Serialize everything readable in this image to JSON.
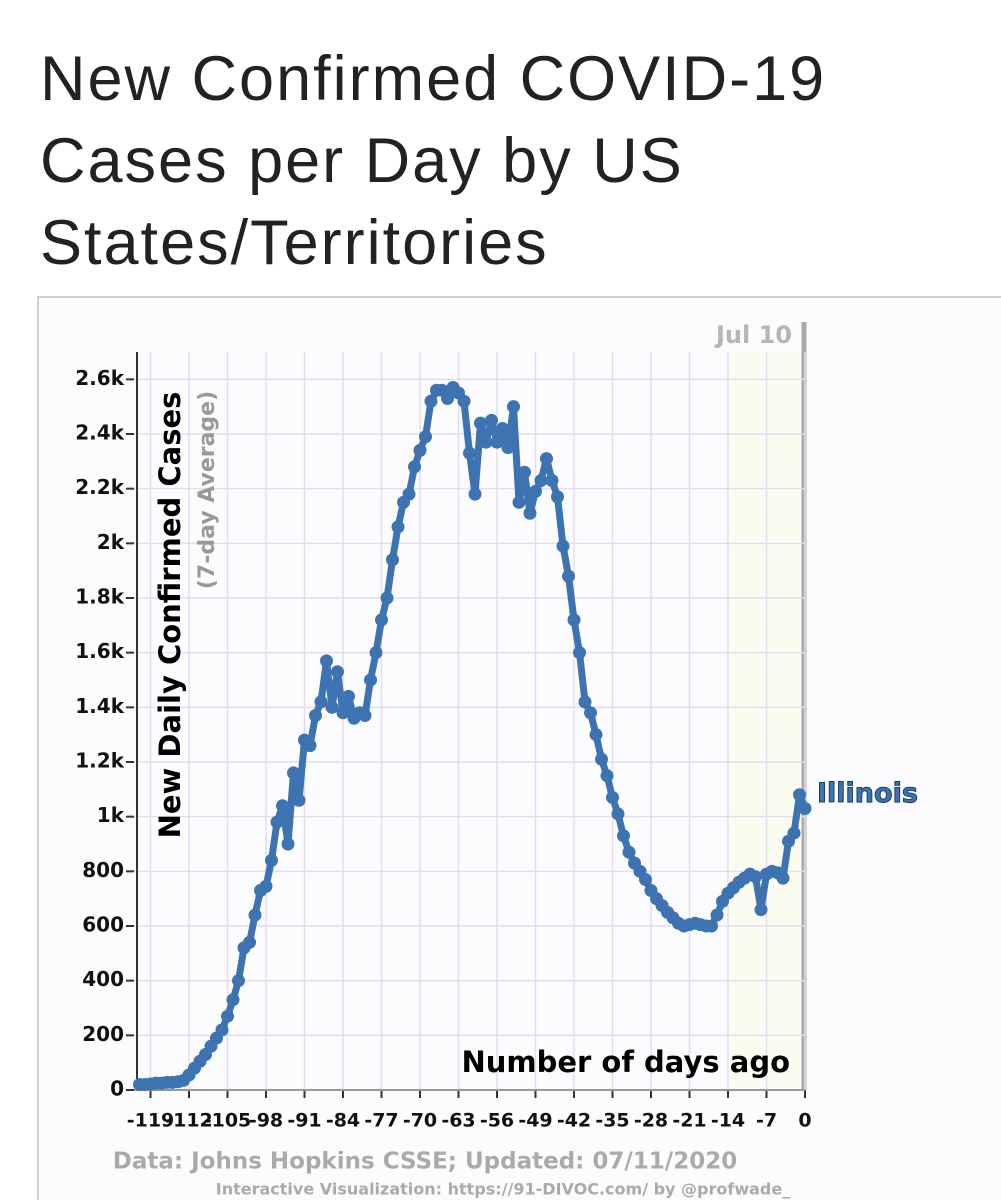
{
  "chart_data": {
    "type": "line",
    "title": "New Confirmed COVID-19 Cases per Day by US States/Territories",
    "ylabel": "New Daily Confirmed Cases",
    "ylabel_sub": "(7-day Average)",
    "xlabel": "Number of days ago",
    "date_label": "Jul 10",
    "source": "Data: Johns Hopkins CSSE; Updated: 07/11/2020",
    "credit": "Interactive Visualization: https://91-DIVOC.com/ by @profwade_",
    "xlim": [
      -122,
      0
    ],
    "ylim": [
      0,
      2700
    ],
    "xticks": [
      -119,
      -112,
      -105,
      -98,
      -91,
      -84,
      -77,
      -70,
      -63,
      -56,
      -49,
      -42,
      -35,
      -28,
      -21,
      -14,
      -7,
      0
    ],
    "yticks": [
      0,
      200,
      400,
      600,
      800,
      {
        "value": 1000,
        "label": "1k"
      },
      {
        "value": 1200,
        "label": "1.2k"
      },
      {
        "value": 1400,
        "label": "1.4k"
      },
      {
        "value": 1600,
        "label": "1.6k"
      },
      {
        "value": 1800,
        "label": "1.8k"
      },
      {
        "value": 2000,
        "label": "2k"
      },
      {
        "value": 2200,
        "label": "2.2k"
      },
      {
        "value": 2400,
        "label": "2.4k"
      },
      {
        "value": 2600,
        "label": "2.6k"
      }
    ],
    "grid": true,
    "x": [
      -121,
      -120,
      -119,
      -118,
      -117,
      -116,
      -115,
      -114,
      -113,
      -112,
      -111,
      -110,
      -109,
      -108,
      -107,
      -106,
      -105,
      -104,
      -103,
      -102,
      -101,
      -100,
      -99,
      -98,
      -97,
      -96,
      -95,
      -94,
      -93,
      -92,
      -91,
      -90,
      -89,
      -88,
      -87,
      -86,
      -85,
      -84,
      -83,
      -82,
      -81,
      -80,
      -79,
      -78,
      -77,
      -76,
      -75,
      -74,
      -73,
      -72,
      -71,
      -70,
      -69,
      -68,
      -67,
      -66,
      -65,
      -64,
      -63,
      -62,
      -61,
      -60,
      -59,
      -58,
      -57,
      -56,
      -55,
      -54,
      -53,
      -52,
      -51,
      -50,
      -49,
      -48,
      -47,
      -46,
      -45,
      -44,
      -43,
      -42,
      -41,
      -40,
      -39,
      -38,
      -37,
      -36,
      -35,
      -34,
      -33,
      -32,
      -31,
      -30,
      -29,
      -28,
      -27,
      -26,
      -25,
      -24,
      -23,
      -22,
      -21,
      -20,
      -19,
      -18,
      -17,
      -16,
      -15,
      -14,
      -13,
      -12,
      -11,
      -10,
      -9,
      -8,
      -7,
      -6,
      -5,
      -4,
      -3,
      -2,
      -1,
      0
    ],
    "series": [
      {
        "name": "Illinois",
        "color": "#3d73b0",
        "values": [
          20,
          20,
          22,
          25,
          25,
          28,
          28,
          30,
          35,
          55,
          80,
          105,
          130,
          160,
          190,
          220,
          270,
          330,
          400,
          520,
          540,
          640,
          730,
          745,
          840,
          980,
          1040,
          900,
          1160,
          1060,
          1280,
          1260,
          1370,
          1420,
          1570,
          1400,
          1530,
          1380,
          1440,
          1360,
          1380,
          1370,
          1500,
          1600,
          1720,
          1800,
          1940,
          2060,
          2150,
          2180,
          2280,
          2340,
          2390,
          2520,
          2560,
          2560,
          2530,
          2570,
          2550,
          2520,
          2330,
          2180,
          2440,
          2370,
          2450,
          2370,
          2420,
          2350,
          2500,
          2150,
          2260,
          2110,
          2190,
          2230,
          2310,
          2230,
          2170,
          1990,
          1880,
          1720,
          1600,
          1420,
          1380,
          1300,
          1210,
          1150,
          1070,
          1010,
          930,
          870,
          830,
          800,
          770,
          730,
          700,
          675,
          650,
          630,
          610,
          600,
          605,
          610,
          605,
          600,
          600,
          640,
          690,
          720,
          740,
          760,
          775,
          790,
          780,
          660,
          790,
          800,
          795,
          775,
          910,
          940,
          1080,
          1030
        ]
      }
    ]
  }
}
